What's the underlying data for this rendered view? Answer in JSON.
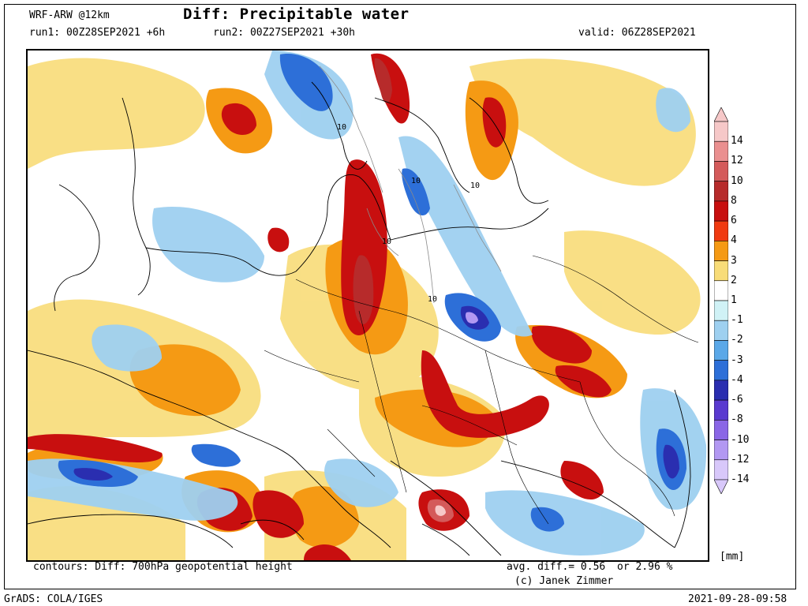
{
  "header": {
    "model": "WRF-ARW @12km",
    "title": "Diff: Precipitable water",
    "run1": "run1: 00Z28SEP2021 +6h",
    "run2": "run2: 00Z27SEP2021 +30h",
    "valid": "valid: 06Z28SEP2021"
  },
  "footer": {
    "contours": "contours: Diff: 700hPa geopotential height",
    "avg": "avg. diff.= 0.56",
    "pct": "or 2.96 %",
    "credit": "(c) Janek Zimmer",
    "grads": "GrADS: COLA/IGES",
    "timestamp": "2021-09-28-09:58"
  },
  "colorbar": {
    "unit": "[mm]",
    "levels": [
      {
        "label": "14",
        "color": "#f6c8c8"
      },
      {
        "label": "12",
        "color": "#ea8f8f"
      },
      {
        "label": "10",
        "color": "#d45a5a"
      },
      {
        "label": "8",
        "color": "#b72b2b"
      },
      {
        "label": "6",
        "color": "#c80f0f"
      },
      {
        "label": "4",
        "color": "#f03a10"
      },
      {
        "label": "3",
        "color": "#f59a14"
      },
      {
        "label": "2",
        "color": "#f8dc78"
      },
      {
        "label": "1",
        "color": "#ffffff"
      },
      {
        "label": "-1",
        "color": "#d0f2f6"
      },
      {
        "label": "-2",
        "color": "#9ed0f0"
      },
      {
        "label": "-3",
        "color": "#5aa8e8"
      },
      {
        "label": "-4",
        "color": "#2d6fd8"
      },
      {
        "label": "-6",
        "color": "#2a2eb0"
      },
      {
        "label": "-8",
        "color": "#5a3ad0"
      },
      {
        "label": "-10",
        "color": "#8a66e6"
      },
      {
        "label": "-12",
        "color": "#b298f2"
      },
      {
        "label": "-14",
        "color": "#d8c8fa"
      }
    ]
  },
  "map": {
    "contour_labels": [
      "10",
      "10",
      "10",
      "10",
      "10"
    ]
  }
}
